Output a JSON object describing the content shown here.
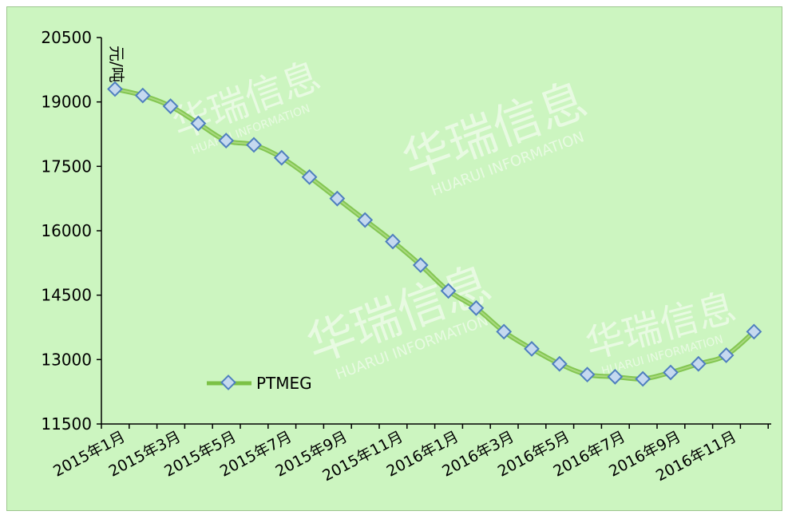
{
  "chart_data": {
    "type": "line",
    "title": "",
    "ylabel": "元/吨",
    "ylim": [
      11500,
      20500
    ],
    "yticks": [
      11500,
      13000,
      14500,
      16000,
      17500,
      19000,
      20500
    ],
    "x_tick_labels": [
      "2015年1月",
      "2015年3月",
      "2015年5月",
      "2015年7月",
      "2015年9月",
      "2015年11月",
      "2016年1月",
      "2016年3月",
      "2016年5月",
      "2016年7月",
      "2016年9月",
      "2016年11月"
    ],
    "series": [
      {
        "name": "PTMEG",
        "values": [
          19300,
          19150,
          18900,
          18500,
          18100,
          18000,
          17700,
          17250,
          16750,
          16250,
          15750,
          15200,
          14600,
          14200,
          13650,
          13250,
          12900,
          12650,
          12600,
          12550,
          12700,
          12900,
          13100,
          13650
        ]
      }
    ],
    "legend": "inside-bottom-left",
    "grid": false
  },
  "watermark": {
    "cn": "华瑞信息",
    "en": "HUARUI INFORMATION"
  },
  "colors": {
    "background": "#ccf5c0",
    "line": "#7cc146",
    "marker_fill": "#c5d9ef",
    "marker_stroke": "#4f7fbf"
  }
}
